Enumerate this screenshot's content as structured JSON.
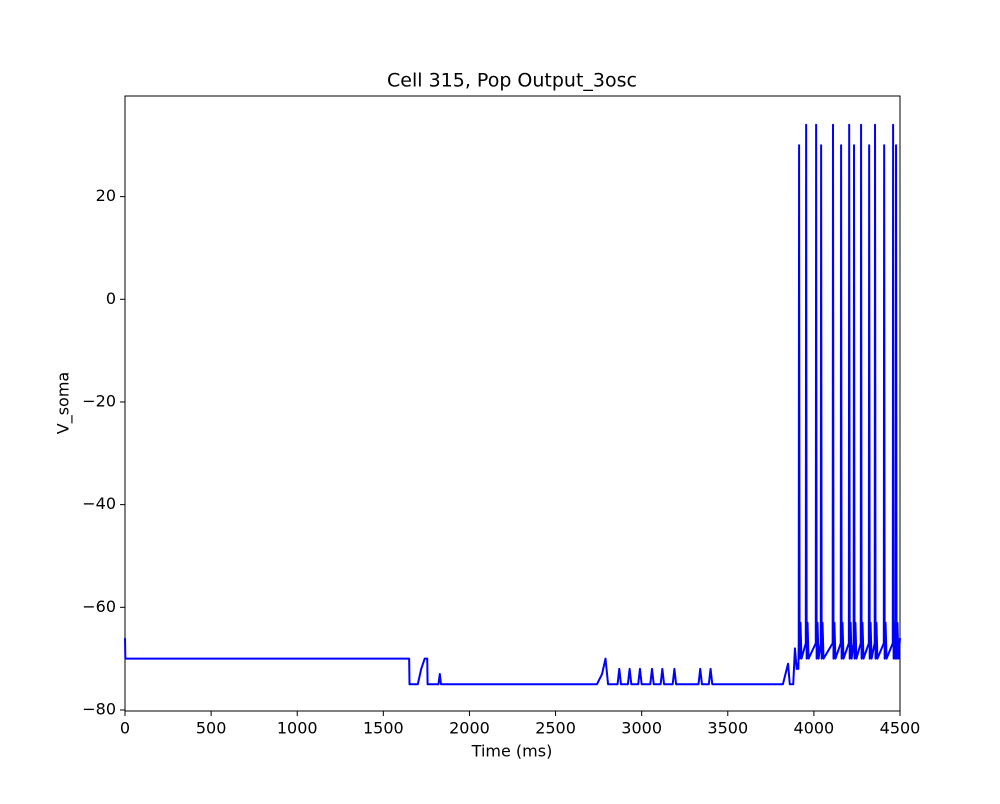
{
  "chart_data": {
    "type": "line",
    "title": "Cell 315, Pop Output_3osc",
    "x_label": "Time (ms)",
    "y_label": "V_soma",
    "color": "#0000ff",
    "x": [
      0,
      2,
      5,
      1650,
      1652,
      1700,
      1720,
      1740,
      1755,
      1757,
      1820,
      1828,
      1835,
      2740,
      2770,
      2790,
      2805,
      2860,
      2870,
      2880,
      2920,
      2930,
      2940,
      2980,
      2990,
      3000,
      3050,
      3060,
      3070,
      3110,
      3120,
      3130,
      3180,
      3190,
      3200,
      3330,
      3340,
      3350,
      3390,
      3400,
      3410,
      3820,
      3850,
      3860,
      3880,
      3890,
      3900,
      3905,
      3910,
      3912,
      3914,
      3917,
      3922,
      3928,
      3953,
      3955,
      3958,
      3963,
      3969,
      4011,
      4013,
      4016,
      4021,
      4027,
      4040,
      4042,
      4045,
      4050,
      4056,
      4109,
      4111,
      4114,
      4119,
      4125,
      4156,
      4158,
      4161,
      4166,
      4172,
      4203,
      4205,
      4208,
      4213,
      4219,
      4231,
      4233,
      4236,
      4241,
      4247,
      4272,
      4274,
      4277,
      4282,
      4288,
      4319,
      4321,
      4324,
      4329,
      4335,
      4353,
      4355,
      4358,
      4363,
      4369,
      4406,
      4408,
      4411,
      4416,
      4422,
      4458,
      4460,
      4463,
      4468,
      4474,
      4475,
      4477,
      4480,
      4485,
      4491,
      4500
    ],
    "values": [
      -66,
      -70,
      -70,
      -70,
      -75,
      -75,
      -72,
      -70,
      -70,
      -75,
      -75,
      -73,
      -75,
      -75,
      -73,
      -70,
      -75,
      -75,
      -72,
      -75,
      -75,
      -72,
      -75,
      -75,
      -72,
      -75,
      -75,
      -72,
      -75,
      -75,
      -72,
      -75,
      -75,
      -72,
      -75,
      -75,
      -72,
      -75,
      -75,
      -72,
      -75,
      -75,
      -71,
      -75,
      -75,
      -68,
      -72,
      -71,
      -72,
      -67,
      30,
      -70,
      -63,
      -70,
      -67,
      34,
      -70,
      -63,
      -70,
      -67,
      34,
      -70,
      -63,
      -70,
      -67,
      30,
      -70,
      -63,
      -70,
      -67,
      34,
      -70,
      -63,
      -70,
      -67,
      30,
      -70,
      -63,
      -70,
      -67,
      34,
      -70,
      -63,
      -70,
      -67,
      30,
      -70,
      -63,
      -70,
      -67,
      34,
      -70,
      -63,
      -70,
      -67,
      30,
      -70,
      -63,
      -70,
      -67,
      34,
      -70,
      -63,
      -70,
      -67,
      30,
      -70,
      -63,
      -70,
      -67,
      34,
      -70,
      -63,
      -70,
      -67,
      30,
      -70,
      -63,
      -70,
      -66
    ],
    "xlim": [
      0,
      4500
    ],
    "ylim": [
      -80.2,
      39.6
    ],
    "xticks": [
      0,
      500,
      1000,
      1500,
      2000,
      2500,
      3000,
      3500,
      4000,
      4500
    ],
    "yticks": [
      {
        "value": -80,
        "label": "−80"
      },
      {
        "value": -60,
        "label": "−60"
      },
      {
        "value": -40,
        "label": "−40"
      },
      {
        "value": -20,
        "label": "−20"
      },
      0,
      20
    ]
  }
}
